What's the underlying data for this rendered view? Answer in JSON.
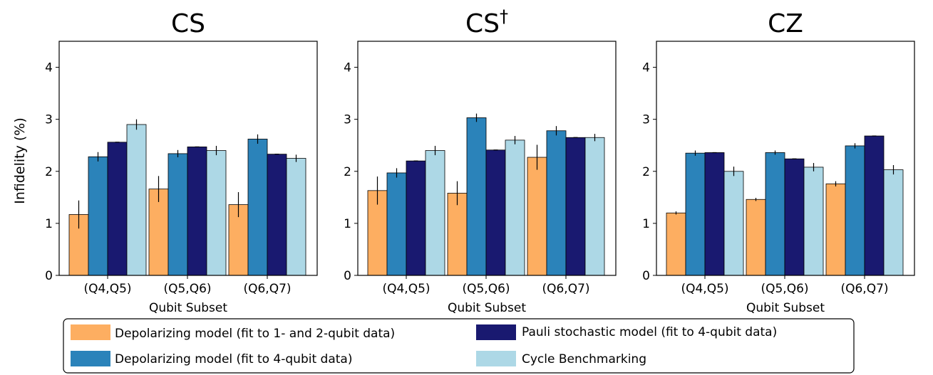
{
  "y_axis_label": "Infidelity (%)",
  "legend": [
    {
      "key": "depol_12",
      "label": "Depolarizing model (fit to 1- and 2-qubit data)",
      "color": "#fdae61"
    },
    {
      "key": "pauli_4",
      "label": "Pauli stochastic model (fit to 4-qubit data)",
      "color": "#191970"
    },
    {
      "key": "depol_4",
      "label": "Depolarizing model (fit to 4-qubit data)",
      "color": "#2b83ba"
    },
    {
      "key": "cb",
      "label": "Cycle Benchmarking",
      "color": "#add8e6"
    }
  ],
  "chart_data": [
    {
      "type": "bar",
      "title": "CS",
      "title_superscript": "",
      "xlabel": "Qubit Subset",
      "ylabel": "Infidelity (%)",
      "ylim": [
        0,
        4.5
      ],
      "yticks": [
        "0",
        "1",
        "2",
        "3",
        "4"
      ],
      "categories": [
        "(Q4,Q5)",
        "(Q5,Q6)",
        "(Q6,Q7)"
      ],
      "series": [
        {
          "name": "Depolarizing model (fit to 1- and 2-qubit data)",
          "values": [
            1.17,
            1.66,
            1.36
          ],
          "err": [
            0.27,
            0.25,
            0.24
          ]
        },
        {
          "name": "Depolarizing model (fit to 4-qubit data)",
          "values": [
            2.28,
            2.34,
            2.62
          ],
          "err": [
            0.09,
            0.07,
            0.09
          ]
        },
        {
          "name": "Pauli stochastic model (fit to 4-qubit data)",
          "values": [
            2.56,
            2.47,
            2.33
          ],
          "err": [
            0,
            0,
            0
          ]
        },
        {
          "name": "Cycle Benchmarking",
          "values": [
            2.9,
            2.4,
            2.25
          ],
          "err": [
            0.1,
            0.09,
            0.07
          ]
        }
      ]
    },
    {
      "type": "bar",
      "title": "CS",
      "title_superscript": "†",
      "xlabel": "Qubit Subset",
      "ylabel": "",
      "ylim": [
        0,
        4.5
      ],
      "yticks": [
        "0",
        "1",
        "2",
        "3",
        "4"
      ],
      "categories": [
        "(Q4,Q5)",
        "(Q5,Q6)",
        "(Q6,Q7)"
      ],
      "series": [
        {
          "name": "Depolarizing model (fit to 1- and 2-qubit data)",
          "values": [
            1.63,
            1.58,
            2.27
          ],
          "err": [
            0.27,
            0.23,
            0.24
          ]
        },
        {
          "name": "Depolarizing model (fit to 4-qubit data)",
          "values": [
            1.97,
            3.03,
            2.78
          ],
          "err": [
            0.09,
            0.08,
            0.09
          ]
        },
        {
          "name": "Pauli stochastic model (fit to 4-qubit data)",
          "values": [
            2.2,
            2.41,
            2.65
          ],
          "err": [
            0,
            0,
            0
          ]
        },
        {
          "name": "Cycle Benchmarking",
          "values": [
            2.4,
            2.6,
            2.65
          ],
          "err": [
            0.09,
            0.08,
            0.07
          ]
        }
      ]
    },
    {
      "type": "bar",
      "title": "CZ",
      "title_superscript": "",
      "xlabel": "Qubit Subset",
      "ylabel": "",
      "ylim": [
        0,
        4.5
      ],
      "yticks": [
        "0",
        "1",
        "2",
        "3",
        "4"
      ],
      "categories": [
        "(Q4,Q5)",
        "(Q5,Q6)",
        "(Q6,Q7)"
      ],
      "series": [
        {
          "name": "Depolarizing model (fit to 1- and 2-qubit data)",
          "values": [
            1.2,
            1.46,
            1.76
          ],
          "err": [
            0.03,
            0.03,
            0.05
          ]
        },
        {
          "name": "Depolarizing model (fit to 4-qubit data)",
          "values": [
            2.35,
            2.36,
            2.49
          ],
          "err": [
            0.05,
            0.04,
            0.05
          ]
        },
        {
          "name": "Pauli stochastic model (fit to 4-qubit data)",
          "values": [
            2.36,
            2.24,
            2.68
          ],
          "err": [
            0,
            0,
            0
          ]
        },
        {
          "name": "Cycle Benchmarking",
          "values": [
            2.0,
            2.08,
            2.03
          ],
          "err": [
            0.09,
            0.08,
            0.09
          ]
        }
      ]
    }
  ]
}
